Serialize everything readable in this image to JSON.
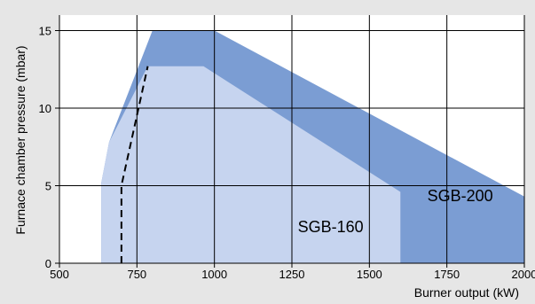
{
  "chart_data": {
    "type": "area",
    "title": "",
    "xlabel": "Burner output (kW)",
    "ylabel": "Furnace chamber pressure (mbar)",
    "xlim": [
      500,
      2000
    ],
    "ylim": [
      0,
      16
    ],
    "x_ticks": [
      500,
      750,
      1000,
      1250,
      1500,
      1750,
      2000
    ],
    "y_ticks": [
      0,
      5,
      10,
      15
    ],
    "grid": true,
    "series": [
      {
        "name": "SGB-200",
        "color": "#7b9dd3",
        "polygon": [
          [
            635,
            0
          ],
          [
            635,
            5.2
          ],
          [
            660,
            7.8
          ],
          [
            800,
            15
          ],
          [
            1000,
            15
          ],
          [
            2000,
            4.3
          ],
          [
            2000,
            0
          ]
        ]
      },
      {
        "name": "SGB-160",
        "color": "#c6d4ef",
        "polygon": [
          [
            635,
            0
          ],
          [
            635,
            5.2
          ],
          [
            660,
            7.8
          ],
          [
            785,
            12.7
          ],
          [
            965,
            12.7
          ],
          [
            1600,
            4.6
          ],
          [
            1600,
            0
          ]
        ]
      }
    ],
    "boundary_line": {
      "style": "dashed",
      "color": "#000000",
      "points": [
        [
          700,
          0
        ],
        [
          700,
          5
        ],
        [
          785,
          12.7
        ]
      ]
    },
    "annotations": [
      {
        "text": "SGB-200",
        "x": 1793,
        "y": 4
      },
      {
        "text": "SGB-160",
        "x": 1375,
        "y": 2
      }
    ]
  }
}
